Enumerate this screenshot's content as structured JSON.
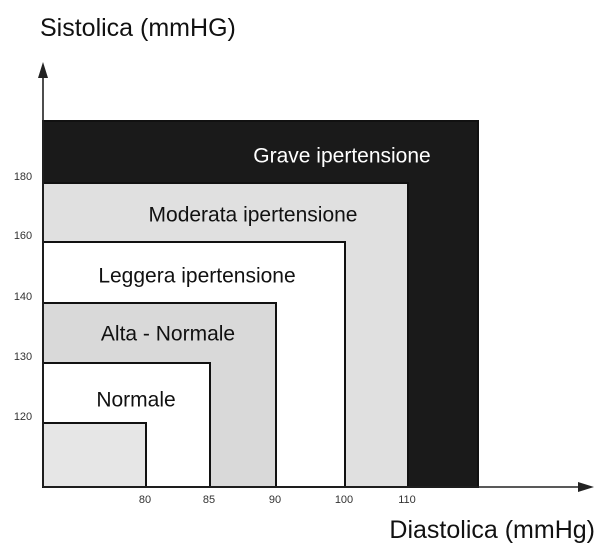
{
  "chart_data": {
    "type": "area",
    "title": "",
    "ylabel": "Sistolica (mmHG)",
    "xlabel": "Diastolica (mmHg)",
    "y_ticks": [
      120,
      130,
      140,
      160,
      180
    ],
    "x_ticks": [
      80,
      85,
      90,
      100,
      110
    ],
    "zones": [
      {
        "name": "Grave ipertensione",
        "diastolic_max": null,
        "systolic_max": null,
        "fill": "#1a1a1a",
        "text_color": "#ffffff"
      },
      {
        "name": "Moderata ipertensione",
        "diastolic_max": 110,
        "systolic_max": 180,
        "fill": "#e0e0e0",
        "text_color": "#111111"
      },
      {
        "name": "Leggera ipertensione",
        "diastolic_max": 100,
        "systolic_max": 160,
        "fill": "#ffffff",
        "text_color": "#111111"
      },
      {
        "name": "Alta - Normale",
        "diastolic_max": 90,
        "systolic_max": 140,
        "fill": "#d9d9d9",
        "text_color": "#111111"
      },
      {
        "name": "Normale",
        "diastolic_max": 85,
        "systolic_max": 130,
        "fill": "#ffffff",
        "text_color": "#111111"
      },
      {
        "name": "",
        "diastolic_max": 80,
        "systolic_max": 120,
        "fill": "#e6e6e6",
        "text_color": "#111111"
      }
    ],
    "grid": false,
    "legend": "none"
  }
}
